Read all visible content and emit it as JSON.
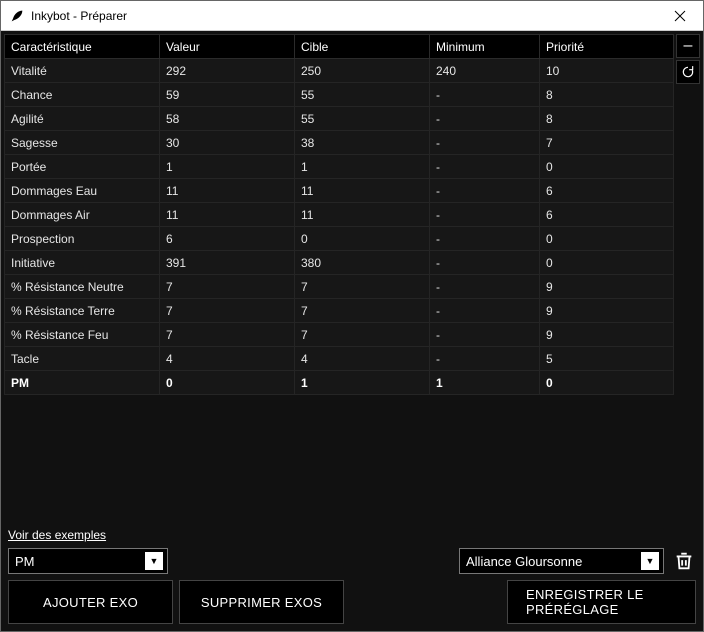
{
  "window": {
    "title": "Inkybot - Préparer"
  },
  "table": {
    "columns": [
      "Caractéristique",
      "Valeur",
      "Cible",
      "Minimum",
      "Priorité"
    ],
    "col_widths": [
      "155px",
      "135px",
      "135px",
      "110px",
      "auto"
    ],
    "rows": [
      {
        "c": "Vitalité",
        "v": "292",
        "t": "250",
        "m": "240",
        "p": "10",
        "bold": false
      },
      {
        "c": "Chance",
        "v": "59",
        "t": "55",
        "m": "-",
        "p": "8",
        "bold": false
      },
      {
        "c": "Agilité",
        "v": "58",
        "t": "55",
        "m": "-",
        "p": "8",
        "bold": false
      },
      {
        "c": "Sagesse",
        "v": "30",
        "t": "38",
        "m": "-",
        "p": "7",
        "bold": false
      },
      {
        "c": "Portée",
        "v": "1",
        "t": "1",
        "m": "-",
        "p": "0",
        "bold": false
      },
      {
        "c": "Dommages Eau",
        "v": "11",
        "t": "11",
        "m": "-",
        "p": "6",
        "bold": false
      },
      {
        "c": "Dommages Air",
        "v": "11",
        "t": "11",
        "m": "-",
        "p": "6",
        "bold": false
      },
      {
        "c": "Prospection",
        "v": "6",
        "t": "0",
        "m": "-",
        "p": "0",
        "bold": false
      },
      {
        "c": "Initiative",
        "v": "391",
        "t": "380",
        "m": "-",
        "p": "0",
        "bold": false
      },
      {
        "c": "% Résistance Neutre",
        "v": "7",
        "t": "7",
        "m": "-",
        "p": "9",
        "bold": false
      },
      {
        "c": "% Résistance Terre",
        "v": "7",
        "t": "7",
        "m": "-",
        "p": "9",
        "bold": false
      },
      {
        "c": "% Résistance Feu",
        "v": "7",
        "t": "7",
        "m": "-",
        "p": "9",
        "bold": false
      },
      {
        "c": "Tacle",
        "v": "4",
        "t": "4",
        "m": "-",
        "p": "5",
        "bold": false
      },
      {
        "c": "PM",
        "v": "0",
        "t": "1",
        "m": "1",
        "p": "0",
        "bold": true
      }
    ]
  },
  "side": {
    "minus": "–"
  },
  "bottom": {
    "examples_link": "Voir des exemples",
    "dropdown_left": "PM",
    "dropdown_right": "Alliance Gloursonne",
    "btn_add": "AJOUTER EXO",
    "btn_del": "SUPPRIMER EXOS",
    "btn_save": "ENREGISTRER LE PRÉRÉGLAGE"
  },
  "colors": {
    "window_bg": "#111111",
    "cell_bg": "#171717",
    "header_bg": "#000000",
    "text": "#e6e6e6",
    "border": "#2b2b2b"
  }
}
